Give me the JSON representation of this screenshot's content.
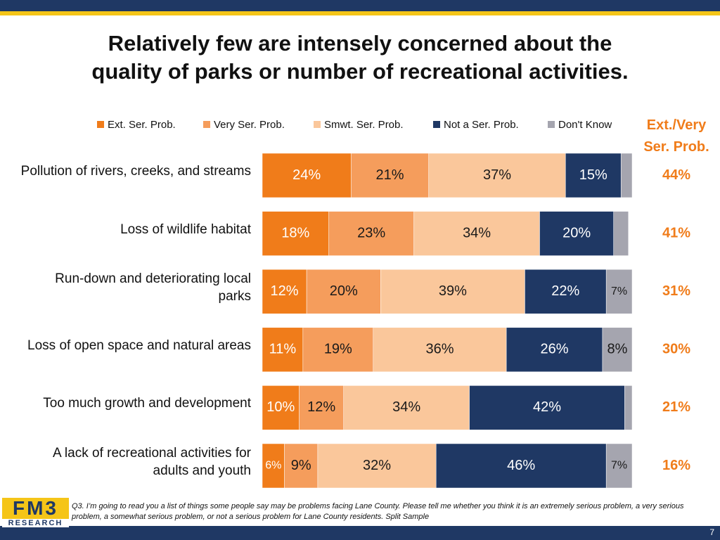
{
  "chart_data": {
    "type": "bar",
    "orientation": "horizontal",
    "stacked": true,
    "title": [
      "Relatively few are intensely concerned about the",
      "quality of parks or number of recreational activities."
    ],
    "categories": [
      "Pollution of rivers, creeks, and streams",
      "Loss of wildlife habitat",
      "Run-down and deteriorating local parks",
      "Loss of open space and natural areas",
      "Too much growth and development",
      "A lack of recreational activities for adults and youth"
    ],
    "xlim": [
      0,
      100
    ],
    "series": [
      {
        "name": "Ext. Ser. Prob.",
        "color": "#f07c1a",
        "label_color": "#ffffff",
        "values": [
          24,
          18,
          12,
          11,
          10,
          6
        ],
        "value_labels": [
          "24%",
          "18%",
          "12%",
          "11%",
          "10%",
          "6%"
        ]
      },
      {
        "name": "Very Ser. Prob.",
        "color": "#f59d5c",
        "label_color": "#1a1a1a",
        "values": [
          21,
          23,
          20,
          19,
          12,
          9
        ],
        "value_labels": [
          "21%",
          "23%",
          "20%",
          "19%",
          "12%",
          "9%"
        ]
      },
      {
        "name": "Smwt. Ser. Prob.",
        "color": "#fac79b",
        "label_color": "#1a1a1a",
        "values": [
          37,
          34,
          39,
          36,
          34,
          32
        ],
        "value_labels": [
          "37%",
          "34%",
          "39%",
          "36%",
          "34%",
          "32%"
        ]
      },
      {
        "name": "Not a Ser. Prob.",
        "color": "#1f3864",
        "label_color": "#ffffff",
        "values": [
          15,
          20,
          22,
          26,
          42,
          46
        ],
        "value_labels": [
          "15%",
          "20%",
          "22%",
          "26%",
          "42%",
          "46%"
        ]
      },
      {
        "name": "Don't Know",
        "color": "#a5a5af",
        "label_color": "#1a1a1a",
        "values": [
          3,
          4,
          7,
          8,
          2,
          7
        ],
        "value_labels": [
          null,
          null,
          "7%",
          "8%",
          null,
          "7%"
        ]
      }
    ],
    "totals": {
      "title": "Ext./Very Ser. Prob.",
      "color": "#f07c1a",
      "values": [
        44,
        41,
        31,
        30,
        21,
        16
      ],
      "value_labels": [
        "44%",
        "41%",
        "31%",
        "30%",
        "21%",
        "16%"
      ]
    },
    "footer": {
      "note": "Q3. I’m going to read you a list of things some people say may be problems facing Lane County. Please tell me whether you think it is an extremely serious problem, a very serious problem, a somewhat serious problem, or not a serious problem for Lane County residents.  Split Sample",
      "logo": "FM3",
      "logo_sub": "RESEARCH",
      "page": "7"
    }
  }
}
